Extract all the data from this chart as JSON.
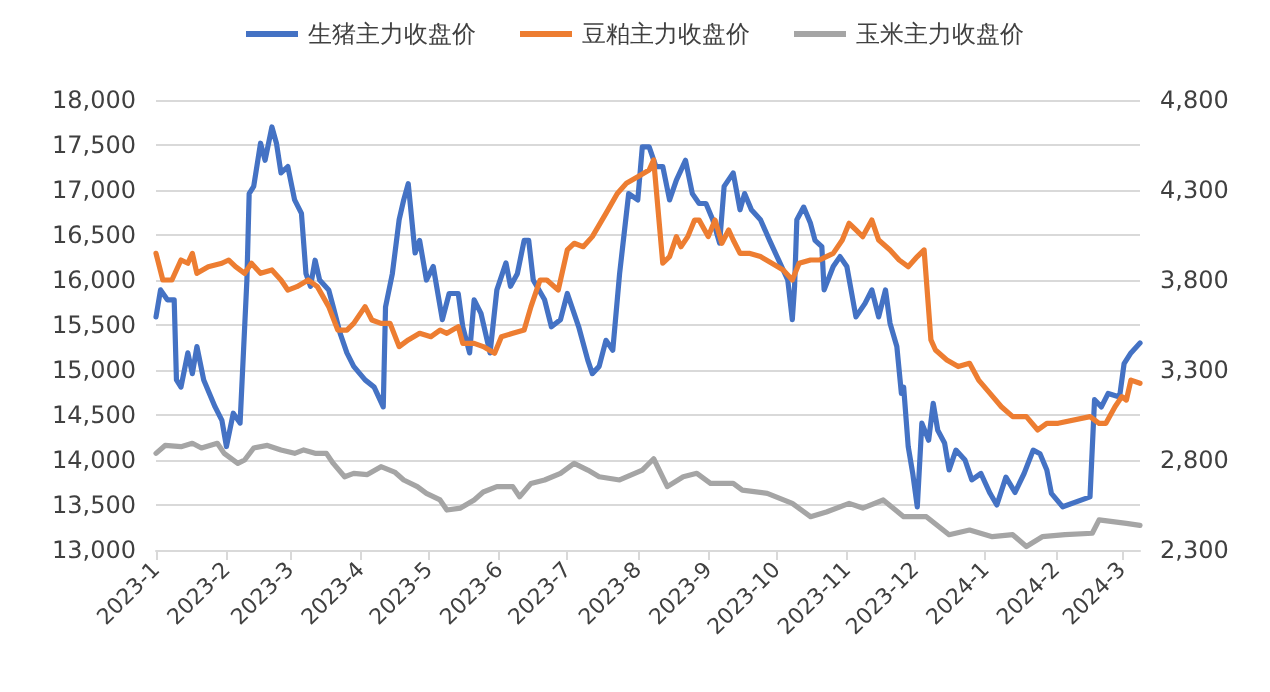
{
  "chart_data": {
    "type": "line",
    "legend": "top",
    "grid": "y",
    "marker": "none",
    "line_style": "solid",
    "xlim": [
      "2023-01-01",
      "2024-03-09"
    ],
    "xticks": [
      {
        "value": "2023-01-01",
        "label": "2023-1"
      },
      {
        "value": "2023-02-01",
        "label": "2023-2"
      },
      {
        "value": "2023-03-01",
        "label": "2023-3"
      },
      {
        "value": "2023-04-01",
        "label": "2023-4"
      },
      {
        "value": "2023-05-01",
        "label": "2023-5"
      },
      {
        "value": "2023-06-01",
        "label": "2023-6"
      },
      {
        "value": "2023-07-01",
        "label": "2023-7"
      },
      {
        "value": "2023-08-01",
        "label": "2023-8"
      },
      {
        "value": "2023-09-01",
        "label": "2023-9"
      },
      {
        "value": "2023-10-01",
        "label": "2023-10"
      },
      {
        "value": "2023-11-01",
        "label": "2023-11"
      },
      {
        "value": "2023-12-01",
        "label": "2023-12"
      },
      {
        "value": "2024-01-01",
        "label": "2024-1"
      },
      {
        "value": "2024-02-01",
        "label": "2024-2"
      },
      {
        "value": "2024-03-01",
        "label": "2024-3"
      }
    ],
    "ylim": [
      13000,
      18000
    ],
    "yticks": [
      {
        "value": 13000,
        "label": "13,000"
      },
      {
        "value": 13500,
        "label": "13,500"
      },
      {
        "value": 14000,
        "label": "14,000"
      },
      {
        "value": 14500,
        "label": "14,500"
      },
      {
        "value": 15000,
        "label": "15,000"
      },
      {
        "value": 15500,
        "label": "15,500"
      },
      {
        "value": 16000,
        "label": "16,000"
      },
      {
        "value": 16500,
        "label": "16,500"
      },
      {
        "value": 17000,
        "label": "17,000"
      },
      {
        "value": 17500,
        "label": "17,500"
      },
      {
        "value": 18000,
        "label": "18,000"
      }
    ],
    "y2lim": [
      2300,
      4800
    ],
    "y2ticks": [
      {
        "value": 2300,
        "label": "2,300"
      },
      {
        "value": 2800,
        "label": "2,800"
      },
      {
        "value": 3300,
        "label": "3,300"
      },
      {
        "value": 3800,
        "label": "3,800"
      },
      {
        "value": 4300,
        "label": "4,300"
      },
      {
        "value": 4800,
        "label": "4,800"
      }
    ],
    "series": [
      {
        "name": "生猪主力收盘价",
        "color": "#4472c4",
        "x": [
          "2023-01-01",
          "2023-01-03",
          "2023-01-06",
          "2023-01-09",
          "2023-01-10",
          "2023-01-12",
          "2023-01-15",
          "2023-01-17",
          "2023-01-19",
          "2023-01-22",
          "2023-01-27",
          "2023-01-30",
          "2023-02-01",
          "2023-02-04",
          "2023-02-07",
          "2023-02-10",
          "2023-02-11",
          "2023-02-13",
          "2023-02-16",
          "2023-02-18",
          "2023-02-21",
          "2023-02-23",
          "2023-02-25",
          "2023-02-28",
          "2023-03-03",
          "2023-03-06",
          "2023-03-08",
          "2023-03-10",
          "2023-03-12",
          "2023-03-14",
          "2023-03-18",
          "2023-03-20",
          "2023-03-23",
          "2023-03-26",
          "2023-03-29",
          "2023-04-03",
          "2023-04-07",
          "2023-04-11",
          "2023-04-12",
          "2023-04-15",
          "2023-04-18",
          "2023-04-20",
          "2023-04-22",
          "2023-04-25",
          "2023-04-27",
          "2023-04-30",
          "2023-05-03",
          "2023-05-07",
          "2023-05-10",
          "2023-05-14",
          "2023-05-16",
          "2023-05-19",
          "2023-05-21",
          "2023-05-24",
          "2023-05-28",
          "2023-05-31",
          "2023-06-04",
          "2023-06-06",
          "2023-06-09",
          "2023-06-12",
          "2023-06-14",
          "2023-06-16",
          "2023-06-21",
          "2023-06-24",
          "2023-06-28",
          "2023-07-01",
          "2023-07-06",
          "2023-07-10",
          "2023-07-12",
          "2023-07-15",
          "2023-07-18",
          "2023-07-21",
          "2023-07-24",
          "2023-07-28",
          "2023-08-01",
          "2023-08-03",
          "2023-08-06",
          "2023-08-09",
          "2023-08-12",
          "2023-08-15",
          "2023-08-18",
          "2023-08-22",
          "2023-08-25",
          "2023-08-28",
          "2023-08-31",
          "2023-09-03",
          "2023-09-06",
          "2023-09-08",
          "2023-09-12",
          "2023-09-15",
          "2023-09-17",
          "2023-09-20",
          "2023-09-24",
          "2023-09-28",
          "2023-10-02",
          "2023-10-06",
          "2023-10-08",
          "2023-10-09",
          "2023-10-10",
          "2023-10-13",
          "2023-10-16",
          "2023-10-18",
          "2023-10-21",
          "2023-10-22",
          "2023-10-26",
          "2023-10-29",
          "2023-11-01",
          "2023-11-05",
          "2023-11-09",
          "2023-11-12",
          "2023-11-15",
          "2023-11-18",
          "2023-11-20",
          "2023-11-23",
          "2023-11-25",
          "2023-11-26",
          "2023-11-28",
          "2023-11-30",
          "2023-12-02",
          "2023-12-04",
          "2023-12-07",
          "2023-12-09",
          "2023-12-11",
          "2023-12-14",
          "2023-12-16",
          "2023-12-19",
          "2023-12-23",
          "2023-12-26",
          "2023-12-30",
          "2024-01-03",
          "2024-01-06",
          "2024-01-10",
          "2024-01-14",
          "2024-01-18",
          "2024-01-22",
          "2024-01-25",
          "2024-01-28",
          "2024-01-30",
          "2024-02-04",
          "2024-02-16",
          "2024-02-18",
          "2024-02-21",
          "2024-02-24",
          "2024-02-29",
          "2024-03-02",
          "2024-03-05",
          "2024-03-09"
        ],
        "values": [
          15590,
          15890,
          15780,
          15780,
          14890,
          14810,
          15190,
          14960,
          15260,
          14890,
          14590,
          14440,
          14150,
          14520,
          14410,
          16000,
          16960,
          17040,
          17520,
          17330,
          17700,
          17520,
          17190,
          17260,
          16890,
          16740,
          16070,
          15930,
          16220,
          16000,
          15890,
          15700,
          15410,
          15190,
          15040,
          14890,
          14810,
          14590,
          15700,
          16070,
          16670,
          16890,
          17070,
          16300,
          16440,
          16000,
          16150,
          15560,
          15850,
          15850,
          15480,
          15190,
          15780,
          15630,
          15190,
          15890,
          16190,
          15930,
          16070,
          16440,
          16440,
          16000,
          15780,
          15480,
          15560,
          15850,
          15480,
          15110,
          14960,
          15040,
          15330,
          15220,
          16070,
          16960,
          16890,
          17480,
          17480,
          17260,
          17260,
          16890,
          17110,
          17330,
          16960,
          16850,
          16850,
          16670,
          16410,
          17040,
          17190,
          16780,
          16960,
          16780,
          16670,
          16440,
          16220,
          16000,
          15560,
          15930,
          16670,
          16810,
          16630,
          16440,
          16370,
          15890,
          16150,
          16260,
          16150,
          15590,
          15740,
          15890,
          15590,
          15890,
          15520,
          15260,
          14740,
          14810,
          14150,
          13850,
          13480,
          14410,
          14220,
          14630,
          14330,
          14190,
          13890,
          14110,
          14000,
          13780,
          13850,
          13630,
          13500,
          13810,
          13640,
          13850,
          14110,
          14070,
          13890,
          13630,
          13480,
          13590,
          14670,
          14590,
          14740,
          14700,
          15070,
          15190,
          15300
        ]
      },
      {
        "name": "豆粕主力收盘价",
        "color": "#ed7d31",
        "axis": "y2",
        "x": [
          "2023-01-01",
          "2023-01-04",
          "2023-01-08",
          "2023-01-12",
          "2023-01-15",
          "2023-01-17",
          "2023-01-19",
          "2023-01-24",
          "2023-01-30",
          "2023-02-02",
          "2023-02-05",
          "2023-02-09",
          "2023-02-12",
          "2023-02-16",
          "2023-02-21",
          "2023-02-25",
          "2023-02-28",
          "2023-03-04",
          "2023-03-09",
          "2023-03-13",
          "2023-03-18",
          "2023-03-22",
          "2023-03-26",
          "2023-03-29",
          "2023-04-03",
          "2023-04-06",
          "2023-04-10",
          "2023-04-14",
          "2023-04-18",
          "2023-04-22",
          "2023-04-27",
          "2023-05-02",
          "2023-05-06",
          "2023-05-09",
          "2023-05-14",
          "2023-05-16",
          "2023-05-21",
          "2023-05-25",
          "2023-05-30",
          "2023-06-02",
          "2023-06-07",
          "2023-06-12",
          "2023-06-15",
          "2023-06-19",
          "2023-06-22",
          "2023-06-27",
          "2023-07-01",
          "2023-07-04",
          "2023-07-08",
          "2023-07-12",
          "2023-07-18",
          "2023-07-23",
          "2023-07-27",
          "2023-08-01",
          "2023-08-06",
          "2023-08-08",
          "2023-08-12",
          "2023-08-15",
          "2023-08-18",
          "2023-08-20",
          "2023-08-23",
          "2023-08-26",
          "2023-08-28",
          "2023-09-01",
          "2023-09-04",
          "2023-09-07",
          "2023-09-10",
          "2023-09-12",
          "2023-09-15",
          "2023-09-19",
          "2023-09-24",
          "2023-09-29",
          "2023-10-04",
          "2023-10-08",
          "2023-10-11",
          "2023-10-16",
          "2023-10-20",
          "2023-10-23",
          "2023-10-26",
          "2023-10-30",
          "2023-11-02",
          "2023-11-05",
          "2023-11-08",
          "2023-11-12",
          "2023-11-15",
          "2023-11-20",
          "2023-11-24",
          "2023-11-28",
          "2023-12-02",
          "2023-12-05",
          "2023-12-08",
          "2023-12-10",
          "2023-12-15",
          "2023-12-20",
          "2023-12-25",
          "2023-12-29",
          "2024-01-03",
          "2024-01-08",
          "2024-01-13",
          "2024-01-19",
          "2024-01-24",
          "2024-01-28",
          "2024-02-02",
          "2024-02-16",
          "2024-02-20",
          "2024-02-23",
          "2024-02-27",
          "2024-03-01",
          "2024-03-03",
          "2024-03-05",
          "2024-03-09"
        ],
        "values": [
          3948,
          3800,
          3800,
          3911,
          3893,
          3948,
          3837,
          3874,
          3893,
          3911,
          3874,
          3837,
          3893,
          3837,
          3856,
          3800,
          3744,
          3763,
          3800,
          3763,
          3652,
          3522,
          3522,
          3559,
          3652,
          3578,
          3559,
          3559,
          3430,
          3467,
          3504,
          3485,
          3522,
          3504,
          3541,
          3448,
          3448,
          3430,
          3393,
          3485,
          3504,
          3522,
          3652,
          3800,
          3800,
          3744,
          3967,
          4004,
          3985,
          4041,
          4170,
          4281,
          4337,
          4374,
          4411,
          4467,
          3893,
          3930,
          4041,
          3985,
          4041,
          4133,
          4133,
          4041,
          4133,
          4004,
          4078,
          4022,
          3948,
          3948,
          3930,
          3893,
          3856,
          3800,
          3893,
          3911,
          3911,
          3930,
          3948,
          4022,
          4115,
          4078,
          4041,
          4133,
          4022,
          3967,
          3911,
          3874,
          3930,
          3967,
          3467,
          3411,
          3356,
          3319,
          3337,
          3244,
          3170,
          3096,
          3041,
          3041,
          2967,
          3004,
          3004,
          3041,
          3004,
          3004,
          3096,
          3152,
          3133,
          3244,
          3226
        ]
      },
      {
        "name": "玉米主力收盘价",
        "color": "#a5a5a5",
        "axis": "y2",
        "x": [
          "2023-01-01",
          "2023-01-05",
          "2023-01-12",
          "2023-01-17",
          "2023-01-21",
          "2023-01-28",
          "2023-01-31",
          "2023-02-06",
          "2023-02-09",
          "2023-02-13",
          "2023-02-19",
          "2023-02-25",
          "2023-03-03",
          "2023-03-07",
          "2023-03-12",
          "2023-03-17",
          "2023-03-20",
          "2023-03-25",
          "2023-03-29",
          "2023-04-04",
          "2023-04-10",
          "2023-04-16",
          "2023-04-20",
          "2023-04-26",
          "2023-04-30",
          "2023-05-06",
          "2023-05-09",
          "2023-05-15",
          "2023-05-21",
          "2023-05-25",
          "2023-05-31",
          "2023-06-07",
          "2023-06-10",
          "2023-06-15",
          "2023-06-21",
          "2023-06-28",
          "2023-07-04",
          "2023-07-10",
          "2023-07-15",
          "2023-07-24",
          "2023-08-03",
          "2023-08-08",
          "2023-08-14",
          "2023-08-21",
          "2023-08-27",
          "2023-09-02",
          "2023-09-12",
          "2023-09-16",
          "2023-09-27",
          "2023-10-08",
          "2023-10-16",
          "2023-10-23",
          "2023-11-02",
          "2023-11-08",
          "2023-11-17",
          "2023-11-26",
          "2023-12-06",
          "2023-12-16",
          "2023-12-25",
          "2024-01-04",
          "2024-01-13",
          "2024-01-19",
          "2024-01-26",
          "2024-02-05",
          "2024-02-17",
          "2024-02-20",
          "2024-03-03",
          "2024-03-09"
        ],
        "values": [
          2837,
          2881,
          2874,
          2893,
          2867,
          2893,
          2837,
          2781,
          2800,
          2867,
          2881,
          2856,
          2837,
          2856,
          2837,
          2837,
          2781,
          2707,
          2726,
          2719,
          2763,
          2733,
          2689,
          2652,
          2615,
          2578,
          2522,
          2533,
          2578,
          2622,
          2652,
          2652,
          2596,
          2670,
          2689,
          2726,
          2781,
          2744,
          2707,
          2689,
          2744,
          2807,
          2652,
          2707,
          2726,
          2670,
          2670,
          2633,
          2615,
          2559,
          2485,
          2511,
          2559,
          2533,
          2578,
          2485,
          2485,
          2385,
          2411,
          2374,
          2385,
          2319,
          2374,
          2385,
          2393,
          2467,
          2448,
          2437
        ]
      }
    ]
  }
}
